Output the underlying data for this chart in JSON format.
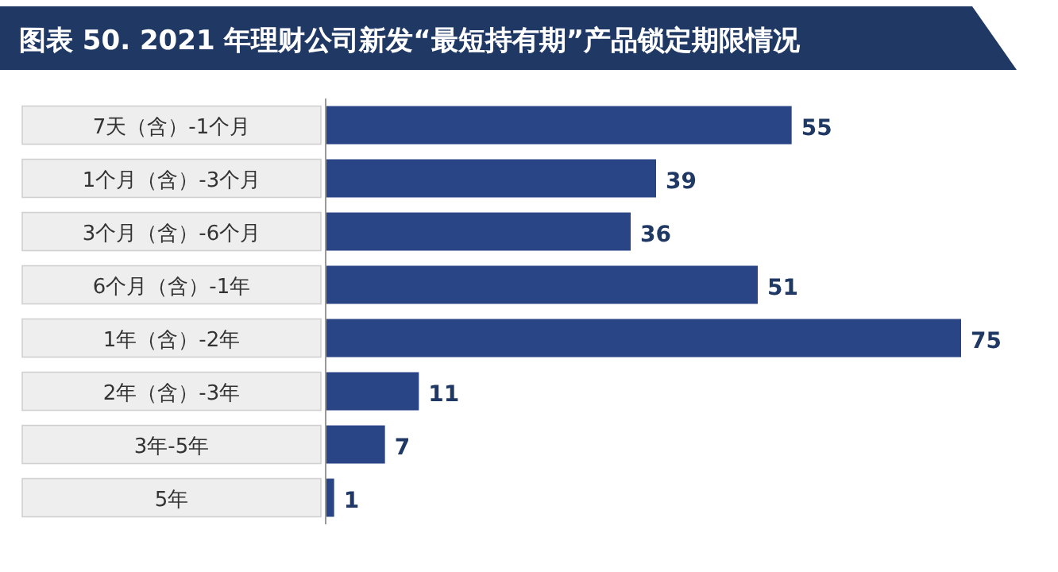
{
  "chart_data": {
    "type": "bar",
    "orientation": "horizontal",
    "title": "图表 50. 2021 年理财公司新发“最短持有期”产品锁定期限情况",
    "categories": [
      "7天（含）-1个月",
      "1个月（含）-3个月",
      "3个月（含）-6个月",
      "6个月（含）-1年",
      "1年（含）-2年",
      "2年（含）-3年",
      "3年-5年",
      "5年"
    ],
    "values": [
      55,
      39,
      36,
      51,
      75,
      11,
      7,
      1
    ],
    "color": "#2a4585",
    "data_labels": true
  }
}
